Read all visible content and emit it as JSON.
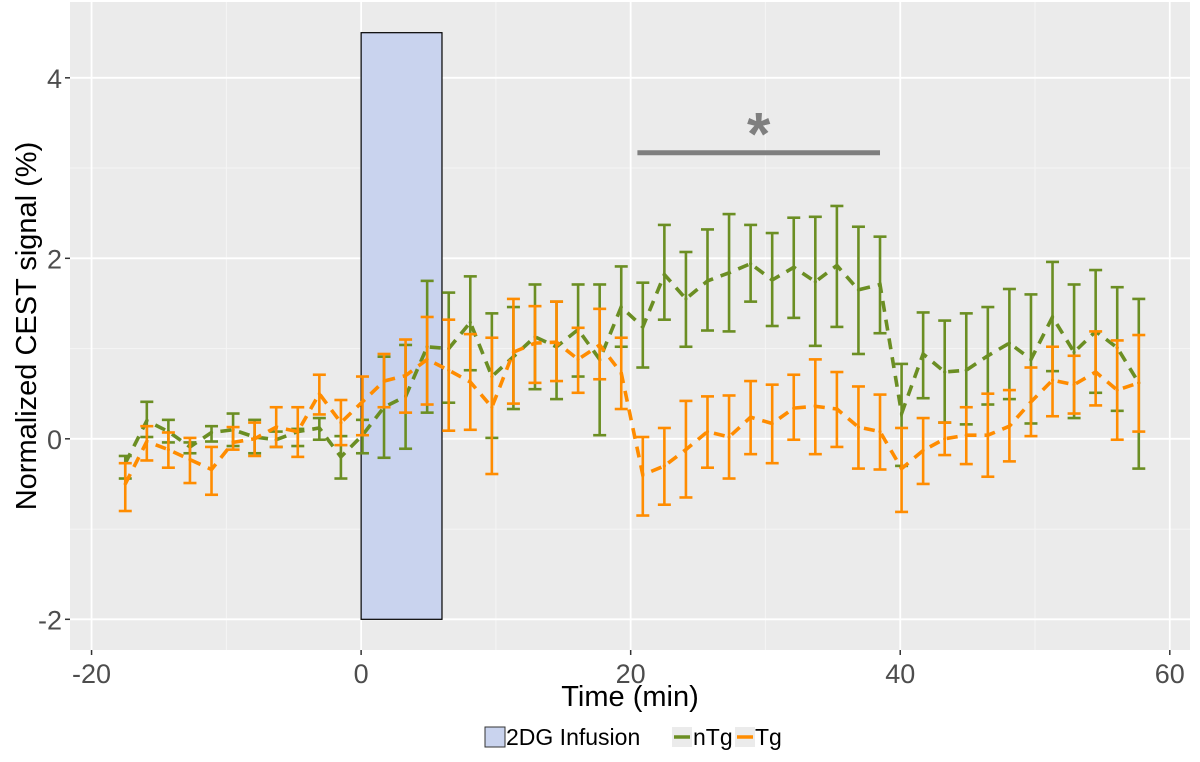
{
  "chart_data": {
    "type": "line",
    "title": "",
    "xlabel": "Time (min)",
    "ylabel": "Normalized CEST signal (%)",
    "xlim": [
      -21.6,
      61.5
    ],
    "ylim": [
      -2.34,
      4.84
    ],
    "xticks": [
      -20,
      0,
      20,
      40,
      60
    ],
    "xtick_labels": [
      "-20",
      "0",
      "20",
      "40",
      "60"
    ],
    "yticks": [
      -2,
      0,
      2,
      4
    ],
    "ytick_labels": [
      "-2",
      "0",
      "2",
      "4"
    ],
    "grid": true,
    "background": "#ebebeb",
    "legend_position": "bottom",
    "legend": [
      "2DG Infusion",
      "nTg",
      "Tg"
    ],
    "x": [
      -17.5,
      -15.9,
      -14.3,
      -12.7,
      -11.1,
      -9.5,
      -7.9,
      -6.3,
      -4.7,
      -3.1,
      -1.5,
      0.1,
      1.7,
      3.3,
      4.9,
      6.5,
      8.1,
      9.7,
      11.3,
      12.9,
      14.5,
      16.1,
      17.7,
      19.3,
      20.9,
      22.5,
      24.1,
      25.7,
      27.3,
      28.9,
      30.5,
      32.1,
      33.7,
      35.3,
      36.9,
      38.5,
      40.1,
      41.7,
      43.3,
      44.9,
      46.5,
      48.1,
      49.7,
      51.3,
      52.9,
      54.5,
      56.1,
      57.7
    ],
    "series": [
      {
        "name": "nTg",
        "color": "#6b8e23",
        "values": [
          -0.27,
          0.2,
          0.08,
          -0.09,
          0.07,
          0.1,
          0.02,
          -0.01,
          0.08,
          0.12,
          -0.2,
          0.04,
          0.35,
          0.47,
          1.02,
          1.0,
          1.29,
          0.69,
          0.91,
          1.13,
          1.02,
          1.21,
          0.88,
          1.46,
          1.24,
          1.82,
          1.55,
          1.75,
          1.84,
          1.94,
          1.76,
          1.9,
          1.74,
          1.92,
          1.65,
          1.71,
          0.28,
          0.94,
          0.74,
          0.76,
          0.92,
          1.06,
          0.88,
          1.35,
          0.96,
          1.19,
          1.01,
          0.62
        ],
        "lower": [
          -0.44,
          0.02,
          -0.04,
          -0.16,
          -0.03,
          -0.08,
          -0.16,
          -0.09,
          -0.08,
          -0.01,
          -0.44,
          -0.16,
          -0.21,
          -0.11,
          0.29,
          0.4,
          0.76,
          0.01,
          0.33,
          0.55,
          0.44,
          0.69,
          0.04,
          1.02,
          0.79,
          1.32,
          1.02,
          1.2,
          1.19,
          1.52,
          1.25,
          1.34,
          1.03,
          1.24,
          0.94,
          1.17,
          -0.3,
          0.45,
          0.18,
          0.16,
          0.38,
          0.44,
          0.17,
          0.75,
          0.23,
          0.51,
          0.31,
          -0.33
        ],
        "upper": [
          -0.19,
          0.41,
          0.21,
          -0.04,
          0.14,
          0.28,
          0.21,
          0.08,
          0.11,
          0.23,
          0.03,
          0.21,
          0.91,
          1.04,
          1.75,
          1.62,
          1.8,
          1.39,
          1.46,
          1.71,
          1.52,
          1.71,
          1.71,
          1.91,
          1.73,
          2.37,
          2.07,
          2.32,
          2.49,
          2.37,
          2.28,
          2.45,
          2.46,
          2.58,
          2.35,
          2.24,
          0.83,
          1.4,
          1.31,
          1.39,
          1.46,
          1.66,
          1.6,
          1.96,
          1.71,
          1.87,
          1.68,
          1.55
        ]
      },
      {
        "name": "Tg",
        "color": "#ff8c00",
        "values": [
          -0.5,
          -0.03,
          -0.12,
          -0.23,
          -0.34,
          -0.04,
          0.0,
          0.13,
          0.08,
          0.5,
          0.18,
          0.41,
          0.64,
          0.7,
          0.88,
          0.76,
          0.63,
          0.35,
          0.96,
          1.06,
          1.07,
          0.88,
          1.04,
          0.73,
          -0.4,
          -0.3,
          -0.12,
          0.08,
          0.02,
          0.24,
          0.17,
          0.34,
          0.36,
          0.33,
          0.13,
          0.08,
          -0.33,
          -0.13,
          0.0,
          0.04,
          0.04,
          0.14,
          0.41,
          0.65,
          0.6,
          0.74,
          0.54,
          0.62
        ],
        "lower": [
          -0.8,
          -0.24,
          -0.32,
          -0.49,
          -0.62,
          -0.12,
          -0.19,
          -0.09,
          -0.2,
          0.27,
          -0.07,
          0.04,
          0.35,
          0.29,
          0.38,
          0.09,
          0.1,
          -0.39,
          0.39,
          0.62,
          0.64,
          0.51,
          0.66,
          0.33,
          -0.85,
          -0.73,
          -0.65,
          -0.32,
          -0.44,
          -0.17,
          -0.27,
          -0.01,
          -0.17,
          -0.09,
          -0.33,
          -0.34,
          -0.81,
          -0.5,
          -0.18,
          -0.28,
          -0.42,
          -0.25,
          0.03,
          0.25,
          0.28,
          0.37,
          -0.01,
          0.08
        ],
        "upper": [
          -0.27,
          0.14,
          0.07,
          0.01,
          -0.09,
          0.13,
          0.18,
          0.35,
          0.35,
          0.71,
          0.43,
          0.69,
          0.94,
          1.1,
          1.35,
          1.32,
          1.16,
          1.12,
          1.55,
          1.47,
          1.52,
          1.23,
          1.44,
          1.12,
          0.02,
          0.12,
          0.42,
          0.47,
          0.48,
          0.64,
          0.6,
          0.71,
          0.88,
          0.74,
          0.58,
          0.49,
          0.12,
          0.23,
          0.18,
          0.35,
          0.5,
          0.54,
          0.79,
          1.02,
          0.92,
          1.19,
          1.09,
          1.15
        ]
      }
    ],
    "infusion": {
      "label": "2DG Infusion",
      "x_start": 0,
      "x_end": 6,
      "y_bottom": -2,
      "y_top": 4.5,
      "fill": "#c9d3ee",
      "border": "#000000"
    },
    "significance": {
      "label": "*",
      "x_start": 20.5,
      "x_end": 38.5,
      "y": 3.17,
      "color": "#7f7f7f"
    }
  }
}
